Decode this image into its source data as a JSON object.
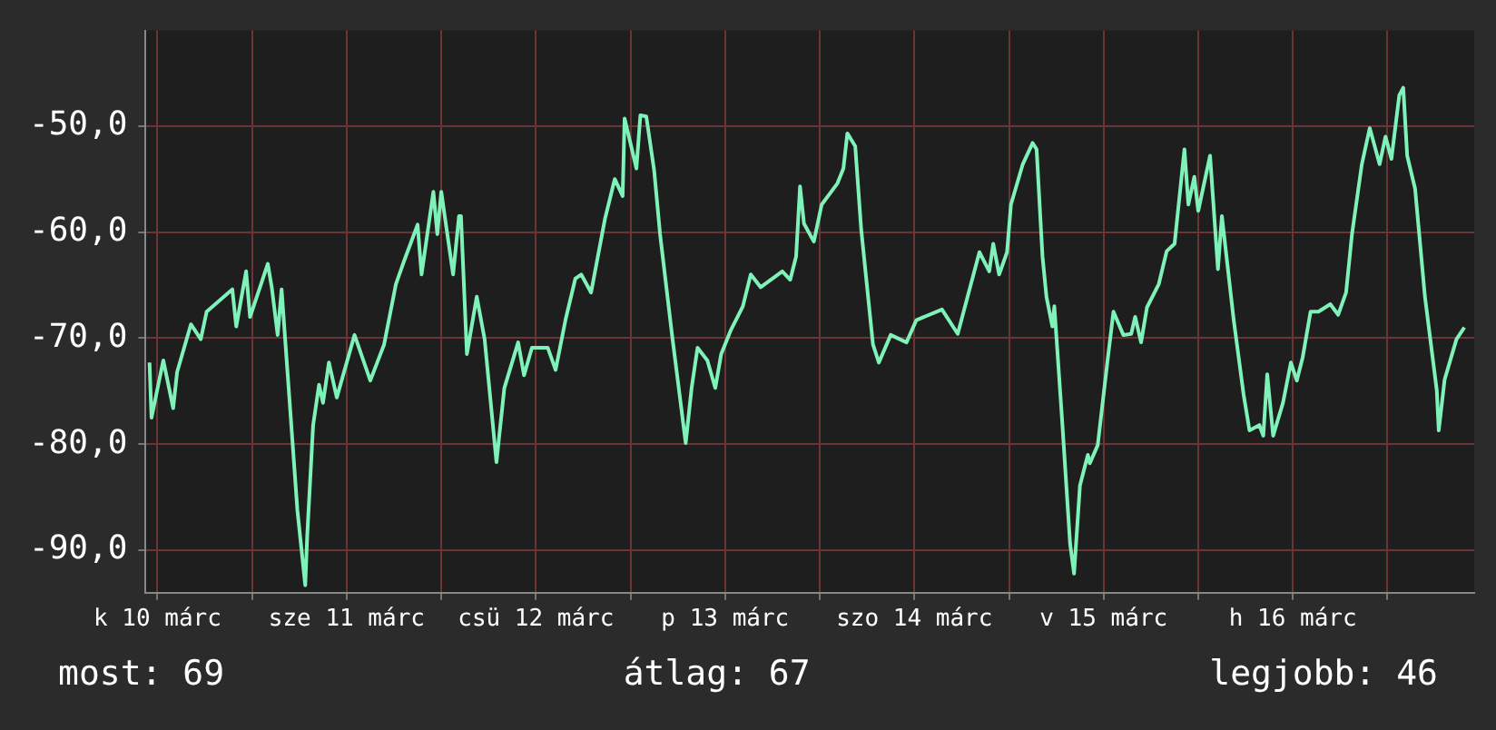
{
  "chart_data": {
    "type": "line",
    "x": [
      "--03-10T11:00",
      "--03-10T11:15",
      "--03-10T12:45",
      "--03-10T14:00",
      "--03-10T14:30",
      "--03-10T16:15",
      "--03-10T17:30",
      "--03-10T18:15",
      "--03-10T21:30",
      "--03-10T22:00",
      "--03-10T23:15",
      "--03-10T23:45",
      "--03-11T02:00",
      "--03-11T02:30",
      "--03-11T03:15",
      "--03-11T03:45",
      "--03-11T04:30",
      "--03-11T05:45",
      "--03-11T06:45",
      "--03-11T07:00",
      "--03-11T07:45",
      "--03-11T08:30",
      "--03-11T09:00",
      "--03-11T09:45",
      "--03-11T10:45",
      "--03-11T13:00",
      "--03-11T15:00",
      "--03-11T16:45",
      "--03-11T18:15",
      "--03-11T19:15",
      "--03-11T21:00",
      "--03-11T21:30",
      "--03-11T23:00",
      "--03-11T23:30",
      "--03-12T00:00",
      "--03-12T01:30",
      "--03-12T02:15",
      "--03-12T02:30",
      "--03-12T03:15",
      "--03-12T04:30",
      "--03-12T05:30",
      "--03-12T07:00",
      "--03-12T08:00",
      "--03-12T09:45",
      "--03-12T10:30",
      "--03-12T11:30",
      "--03-12T13:30",
      "--03-12T14:30",
      "--03-12T15:45",
      "--03-12T17:00",
      "--03-12T17:45",
      "--03-12T19:00",
      "--03-12T20:45",
      "--03-12T22:00",
      "--03-12T23:00",
      "--03-12T23:15",
      "--03-13T00:45",
      "--03-13T01:15",
      "--03-13T02:00",
      "--03-13T03:00",
      "--03-13T03:45",
      "--03-13T05:15",
      "--03-13T07:00",
      "--03-13T07:45",
      "--03-13T08:30",
      "--03-13T09:45",
      "--03-13T10:45",
      "--03-13T11:30",
      "--03-13T12:45",
      "--03-13T14:15",
      "--03-13T15:15",
      "--03-13T16:30",
      "--03-13T19:15",
      "--03-13T20:15",
      "--03-13T21:00",
      "--03-13T21:30",
      "--03-13T22:00",
      "--03-13T23:15",
      "--03-14T00:15",
      "--03-14T02:15",
      "--03-14T03:00",
      "--03-14T03:30",
      "--03-14T04:30",
      "--03-14T05:15",
      "--03-14T06:45",
      "--03-14T07:30",
      "--03-14T09:00",
      "--03-14T11:00",
      "--03-14T12:15",
      "--03-14T15:30",
      "--03-14T17:30",
      "--03-14T18:45",
      "--03-14T20:15",
      "--03-14T21:30",
      "--03-14T22:00",
      "--03-14T22:45",
      "--03-14T23:45",
      "--03-15T00:15",
      "--03-15T01:45",
      "--03-15T03:00",
      "--03-15T03:30",
      "--03-15T04:15",
      "--03-15T04:45",
      "--03-15T05:30",
      "--03-15T05:45",
      "--03-15T06:45",
      "--03-15T07:45",
      "--03-15T08:15",
      "--03-15T09:00",
      "--03-15T10:00",
      "--03-15T10:15",
      "--03-15T11:15",
      "--03-15T12:30",
      "--03-15T13:15",
      "--03-15T14:30",
      "--03-15T15:30",
      "--03-15T16:00",
      "--03-15T16:45",
      "--03-15T17:30",
      "--03-15T19:00",
      "--03-15T20:00",
      "--03-15T21:00",
      "--03-15T22:15",
      "--03-15T22:45",
      "--03-15T23:30",
      "--03-16T00:00",
      "--03-16T01:30",
      "--03-16T02:30",
      "--03-16T03:00",
      "--03-16T04:30",
      "--03-16T05:45",
      "--03-16T06:30",
      "--03-16T07:45",
      "--03-16T08:15",
      "--03-16T08:45",
      "--03-16T09:30",
      "--03-16T10:45",
      "--03-16T11:45",
      "--03-16T12:30",
      "--03-16T13:15",
      "--03-16T14:15",
      "--03-16T15:15",
      "--03-16T16:45",
      "--03-16T17:45",
      "--03-16T18:45",
      "--03-16T19:30",
      "--03-16T20:45",
      "--03-16T21:45",
      "--03-16T23:00",
      "--03-16T23:45",
      "--03-17T00:30",
      "--03-17T01:30",
      "--03-17T02:00",
      "--03-17T02:30",
      "--03-17T03:30",
      "--03-17T04:45",
      "--03-17T06:15",
      "--03-17T06:30",
      "--03-17T07:15",
      "--03-17T08:45",
      "--03-17T09:45"
    ],
    "series": [
      {
        "color": "#7ef2b8",
        "values": [
          -72.3,
          -77.5,
          -72.1,
          -76.6,
          -73.2,
          -68.7,
          -70.1,
          -67.5,
          -65.4,
          -68.9,
          -63.7,
          -68.0,
          -63.0,
          -65.2,
          -69.7,
          -65.4,
          -73.2,
          -86.2,
          -93.3,
          -88.6,
          -78.2,
          -74.4,
          -76.1,
          -72.3,
          -75.6,
          -69.7,
          -74.0,
          -70.6,
          -64.9,
          -62.8,
          -59.3,
          -64.0,
          -56.2,
          -60.2,
          -56.2,
          -64.0,
          -58.5,
          -58.5,
          -71.5,
          -66.1,
          -70.1,
          -81.7,
          -74.7,
          -70.4,
          -73.5,
          -70.9,
          -70.9,
          -73.0,
          -68.3,
          -64.4,
          -64.0,
          -65.7,
          -58.8,
          -55.0,
          -56.6,
          -49.3,
          -54.0,
          -49.0,
          -49.1,
          -54.2,
          -60.2,
          -69.6,
          -79.9,
          -74.7,
          -70.9,
          -72.1,
          -74.7,
          -71.5,
          -69.2,
          -67.0,
          -64.0,
          -65.2,
          -63.7,
          -64.5,
          -62.3,
          -55.7,
          -59.2,
          -60.9,
          -57.4,
          -55.4,
          -54.0,
          -50.7,
          -51.9,
          -59.7,
          -70.6,
          -72.3,
          -69.7,
          -70.4,
          -68.3,
          -67.3,
          -69.6,
          -66.1,
          -61.9,
          -63.7,
          -61.1,
          -64.0,
          -61.9,
          -57.4,
          -53.6,
          -51.6,
          -52.2,
          -62.3,
          -66.1,
          -68.9,
          -67.0,
          -77.9,
          -89.4,
          -92.2,
          -83.9,
          -81.0,
          -81.8,
          -80.1,
          -72.1,
          -67.5,
          -69.7,
          -69.6,
          -68.0,
          -70.4,
          -67.1,
          -64.9,
          -61.8,
          -61.1,
          -52.2,
          -57.4,
          -54.8,
          -58.0,
          -52.8,
          -63.5,
          -58.5,
          -68.3,
          -75.3,
          -78.7,
          -78.2,
          -79.2,
          -73.4,
          -79.2,
          -76.1,
          -72.3,
          -74.0,
          -71.8,
          -67.5,
          -67.5,
          -66.8,
          -67.8,
          -65.7,
          -60.2,
          -53.6,
          -50.2,
          -53.6,
          -51.0,
          -53.1,
          -47.1,
          -46.4,
          -52.8,
          -55.9,
          -66.1,
          -74.9,
          -78.7,
          -73.9,
          -70.1,
          -69.0
        ]
      }
    ],
    "xlim": [
      "--03-10T10:30",
      "--03-17T11:00"
    ],
    "xticks": [
      {
        "value": "--03-10T12:00",
        "label": "k 10 márc"
      },
      {
        "value": "--03-11T00:00",
        "label": null
      },
      {
        "value": "--03-11T12:00",
        "label": "sze 11 márc"
      },
      {
        "value": "--03-12T00:00",
        "label": null
      },
      {
        "value": "--03-12T12:00",
        "label": "csü 12 márc"
      },
      {
        "value": "--03-13T00:00",
        "label": null
      },
      {
        "value": "--03-13T12:00",
        "label": "p 13 márc"
      },
      {
        "value": "--03-14T00:00",
        "label": null
      },
      {
        "value": "--03-14T12:00",
        "label": "szo 14 márc"
      },
      {
        "value": "--03-15T00:00",
        "label": null
      },
      {
        "value": "--03-15T12:00",
        "label": "v 15 márc"
      },
      {
        "value": "--03-16T00:00",
        "label": null
      },
      {
        "value": "--03-16T12:00",
        "label": "h 16 márc"
      },
      {
        "value": "--03-17T00:00",
        "label": null
      }
    ],
    "ylim": [
      -94,
      -41
    ],
    "yticks": [
      {
        "value": -90,
        "label": "-90,0"
      },
      {
        "value": -80,
        "label": "-80,0"
      },
      {
        "value": -70,
        "label": "-70,0"
      },
      {
        "value": -60,
        "label": "-60,0"
      },
      {
        "value": -50,
        "label": "-50,0"
      }
    ],
    "grid": true,
    "marker": "none",
    "line_style": "solid",
    "annotations": [
      "most: 69",
      "átlag: 67",
      "legjobb: 46"
    ]
  }
}
